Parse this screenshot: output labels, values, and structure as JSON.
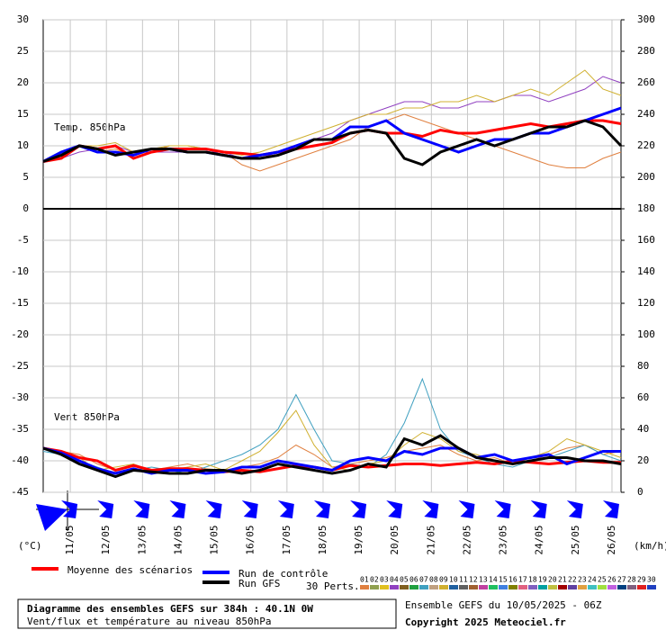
{
  "chart_data": {
    "type": "line",
    "title": "Diagramme des ensembles GEFS sur 384h : 40.1N 0W",
    "subtitle": "Vent/flux et température au niveau 850hPa",
    "run_label": "Ensemble GEFS du 10/05/2025 - 06Z",
    "copyright": "Copyright 2025 Meteociel.fr",
    "temp_label": "Temp. 850hPa",
    "wind_label": "Vent 850hPa",
    "y_unit": "(°C)",
    "y2_unit": "(km/h)",
    "perts_label": "30 Perts.",
    "x": [
      0,
      12,
      24,
      36,
      48,
      60,
      72,
      84,
      96,
      108,
      120,
      132,
      144,
      156,
      168,
      180,
      192,
      204,
      216,
      228,
      240,
      252,
      264,
      276,
      288,
      300,
      312,
      324,
      336,
      348,
      360,
      372,
      384
    ],
    "xlim": [
      0,
      384
    ],
    "xticks": [
      {
        "value": 18,
        "label": "11/05"
      },
      {
        "value": 42,
        "label": "12/05"
      },
      {
        "value": 66,
        "label": "13/05"
      },
      {
        "value": 90,
        "label": "14/05"
      },
      {
        "value": 114,
        "label": "15/05"
      },
      {
        "value": 138,
        "label": "16/05"
      },
      {
        "value": 162,
        "label": "17/05"
      },
      {
        "value": 186,
        "label": "18/05"
      },
      {
        "value": 210,
        "label": "19/05"
      },
      {
        "value": 234,
        "label": "20/05"
      },
      {
        "value": 258,
        "label": "21/05"
      },
      {
        "value": 282,
        "label": "22/05"
      },
      {
        "value": 306,
        "label": "23/05"
      },
      {
        "value": 330,
        "label": "24/05"
      },
      {
        "value": 354,
        "label": "25/05"
      },
      {
        "value": 378,
        "label": "26/05"
      }
    ],
    "ylim": [
      -45,
      30
    ],
    "yticks": [
      30,
      25,
      20,
      15,
      10,
      5,
      0,
      -5,
      -10,
      -15,
      -20,
      -25,
      -30,
      -35,
      -40,
      -45
    ],
    "y2lim": [
      0,
      300
    ],
    "y2ticks": [
      300,
      280,
      260,
      240,
      220,
      200,
      180,
      160,
      140,
      120,
      100,
      80,
      60,
      40,
      20,
      0
    ],
    "grid": true,
    "series": [
      {
        "name": "Moyenne des scénarios",
        "color": "#ff0000",
        "width": 3,
        "values": [
          7.5,
          8,
          10,
          9.5,
          10,
          8,
          9,
          9.5,
          9.5,
          9.5,
          9,
          8.8,
          8.5,
          9,
          9.5,
          10,
          10.5,
          12,
          12.5,
          12,
          12,
          11.5,
          12.5,
          12,
          12,
          12.5,
          13,
          13.5,
          13,
          13.5,
          14,
          14,
          13.5
        ]
      },
      {
        "name": "Run de contrôle",
        "color": "#0000ff",
        "width": 3,
        "values": [
          7.5,
          9,
          10,
          9,
          9,
          8.5,
          9.5,
          9.5,
          9,
          9,
          8.5,
          8,
          8.5,
          9,
          10,
          11,
          11,
          13,
          13,
          14,
          12,
          11,
          10,
          9,
          10,
          11,
          11,
          12,
          12,
          13,
          14,
          15,
          16
        ]
      },
      {
        "name": "Run GFS",
        "color": "#000000",
        "width": 3,
        "values": [
          7.5,
          8.5,
          10,
          9.5,
          8.5,
          9,
          9.5,
          9.5,
          9,
          9,
          8.5,
          8,
          8,
          8.5,
          9.5,
          11,
          11,
          12,
          12.5,
          12,
          8,
          7,
          9,
          10,
          11,
          10,
          11,
          12,
          13,
          13,
          14,
          13,
          10
        ]
      },
      {
        "name": "Moyenne des scénarios",
        "color": "#ff0000",
        "width": 3,
        "axis": "y2",
        "values": [
          28,
          26,
          22,
          20,
          14,
          17,
          14,
          15,
          15,
          14,
          13,
          14,
          13,
          15,
          17,
          16,
          14,
          17,
          16,
          17,
          18,
          18,
          17,
          18,
          19,
          18,
          20,
          19,
          18,
          19,
          20,
          19,
          19
        ]
      },
      {
        "name": "Run de contrôle",
        "color": "#0000ff",
        "width": 3,
        "axis": "y2",
        "values": [
          28,
          25,
          20,
          15,
          12,
          15,
          12,
          14,
          14,
          12,
          13,
          16,
          16,
          20,
          18,
          16,
          14,
          20,
          22,
          20,
          26,
          24,
          28,
          28,
          22,
          24,
          20,
          22,
          24,
          18,
          22,
          26,
          26
        ]
      },
      {
        "name": "Run GFS",
        "color": "#000000",
        "width": 3,
        "axis": "y2",
        "values": [
          28,
          24,
          18,
          14,
          10,
          14,
          13,
          12,
          12,
          14,
          14,
          12,
          14,
          18,
          16,
          14,
          12,
          14,
          18,
          16,
          34,
          30,
          36,
          28,
          22,
          20,
          18,
          20,
          22,
          22,
          20,
          20,
          18
        ]
      },
      {
        "name": "01",
        "color": "#e08040",
        "width": 1,
        "values": [
          7.5,
          9,
          10,
          9,
          9.5,
          8,
          9,
          10,
          10,
          9.5,
          9,
          7,
          6,
          7,
          8,
          9,
          10,
          11,
          13,
          14,
          15,
          14,
          13,
          12,
          11,
          10,
          9,
          8,
          7,
          6.5,
          6.5,
          8,
          9
        ]
      },
      {
        "name": "04",
        "color": "#9040c0",
        "width": 1,
        "values": [
          7.5,
          8,
          9,
          9.5,
          10,
          9,
          9,
          9,
          9,
          9,
          9,
          8,
          8,
          9,
          10,
          11,
          12,
          14,
          15,
          16,
          17,
          17,
          16,
          16,
          17,
          17,
          18,
          18,
          17,
          18,
          19,
          21,
          20
        ]
      },
      {
        "name": "09",
        "color": "#d0b030",
        "width": 1,
        "values": [
          7.5,
          8,
          10,
          10,
          10.5,
          9,
          9.5,
          10,
          10,
          9.5,
          9,
          8.5,
          9,
          10,
          11,
          12,
          13,
          14,
          15,
          15,
          16,
          16,
          17,
          17,
          18,
          17,
          18,
          19,
          18,
          20,
          22,
          19,
          18
        ]
      },
      {
        "name": "01",
        "color": "#e08040",
        "width": 1,
        "axis": "y2",
        "values": [
          28,
          26,
          24,
          18,
          14,
          18,
          14,
          16,
          18,
          15,
          14,
          16,
          18,
          22,
          30,
          24,
          16,
          18,
          20,
          22,
          26,
          28,
          30,
          24,
          20,
          22,
          18,
          20,
          24,
          28,
          30,
          24,
          26
        ]
      },
      {
        "name": "07",
        "color": "#40a0c0",
        "width": 1,
        "axis": "y2",
        "values": [
          26,
          24,
          20,
          16,
          12,
          14,
          16,
          14,
          12,
          16,
          20,
          24,
          30,
          40,
          62,
          40,
          20,
          18,
          16,
          24,
          44,
          72,
          40,
          26,
          22,
          18,
          16,
          20,
          22,
          26,
          30,
          24,
          20
        ]
      },
      {
        "name": "09",
        "color": "#d0b030",
        "width": 1,
        "axis": "y2",
        "values": [
          28,
          25,
          22,
          14,
          16,
          18,
          12,
          14,
          16,
          18,
          14,
          20,
          26,
          38,
          52,
          30,
          16,
          14,
          18,
          20,
          30,
          38,
          34,
          26,
          24,
          20,
          18,
          22,
          26,
          34,
          30,
          26,
          22
        ]
      }
    ],
    "perturbations": [
      {
        "name": "01",
        "color": "#e08040"
      },
      {
        "name": "02",
        "color": "#90a050"
      },
      {
        "name": "03",
        "color": "#e0c020"
      },
      {
        "name": "04",
        "color": "#9040c0"
      },
      {
        "name": "05",
        "color": "#806020"
      },
      {
        "name": "06",
        "color": "#20a040"
      },
      {
        "name": "07",
        "color": "#40a0c0"
      },
      {
        "name": "08",
        "color": "#c0a080"
      },
      {
        "name": "09",
        "color": "#d0b030"
      },
      {
        "name": "10",
        "color": "#2060a0"
      },
      {
        "name": "11",
        "color": "#606060"
      },
      {
        "name": "12",
        "color": "#a06030"
      },
      {
        "name": "13",
        "color": "#c040a0"
      },
      {
        "name": "14",
        "color": "#20c060"
      },
      {
        "name": "15",
        "color": "#4080e0"
      },
      {
        "name": "16",
        "color": "#808000"
      },
      {
        "name": "17",
        "color": "#e06080"
      },
      {
        "name": "18",
        "color": "#8060c0"
      },
      {
        "name": "19",
        "color": "#00a0a0"
      },
      {
        "name": "20",
        "color": "#c0c040"
      },
      {
        "name": "21",
        "color": "#a00000"
      },
      {
        "name": "22",
        "color": "#6040a0"
      },
      {
        "name": "23",
        "color": "#e0a040"
      },
      {
        "name": "24",
        "color": "#40c0c0"
      },
      {
        "name": "25",
        "color": "#a0e040"
      },
      {
        "name": "26",
        "color": "#c060e0"
      },
      {
        "name": "27",
        "color": "#004080"
      },
      {
        "name": "28",
        "color": "#806080"
      },
      {
        "name": "29",
        "color": "#e02020"
      },
      {
        "name": "30",
        "color": "#2040c0"
      }
    ]
  }
}
